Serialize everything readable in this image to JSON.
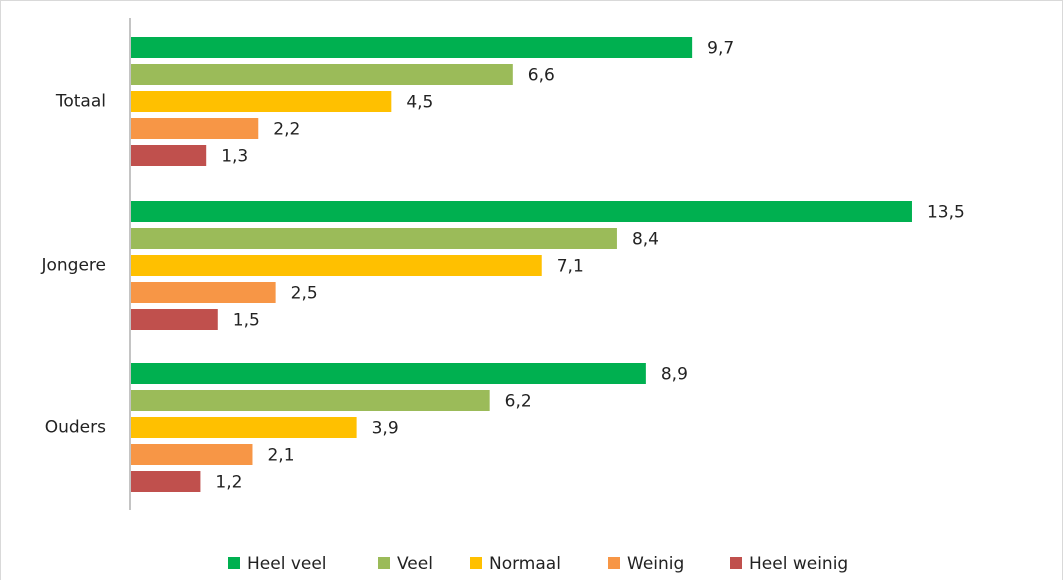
{
  "chart_data": {
    "type": "bar",
    "orientation": "horizontal",
    "categories": [
      "Totaal",
      "Jongere",
      "Ouders"
    ],
    "series": [
      {
        "name": "Heel veel",
        "color": "#00b050",
        "values": [
          9.7,
          13.5,
          8.9
        ],
        "value_labels": [
          "9,7",
          "13,5",
          "8,9"
        ]
      },
      {
        "name": "Veel",
        "color": "#9bbb59",
        "values": [
          6.6,
          8.4,
          6.2
        ],
        "value_labels": [
          "6,6",
          "8,4",
          "6,2"
        ]
      },
      {
        "name": "Normaal",
        "color": "#ffc000",
        "values": [
          4.5,
          7.1,
          3.9
        ],
        "value_labels": [
          "4,5",
          "7,1",
          "3,9"
        ]
      },
      {
        "name": "Weinig",
        "color": "#f79646",
        "values": [
          2.2,
          2.5,
          2.1
        ],
        "value_labels": [
          "2,2",
          "2,5",
          "2,1"
        ]
      },
      {
        "name": "Heel weinig",
        "color": "#c0504d",
        "values": [
          1.3,
          1.5,
          1.2
        ],
        "value_labels": [
          "1,3",
          "1,5",
          "1,2"
        ]
      }
    ],
    "legend": "bottom"
  }
}
